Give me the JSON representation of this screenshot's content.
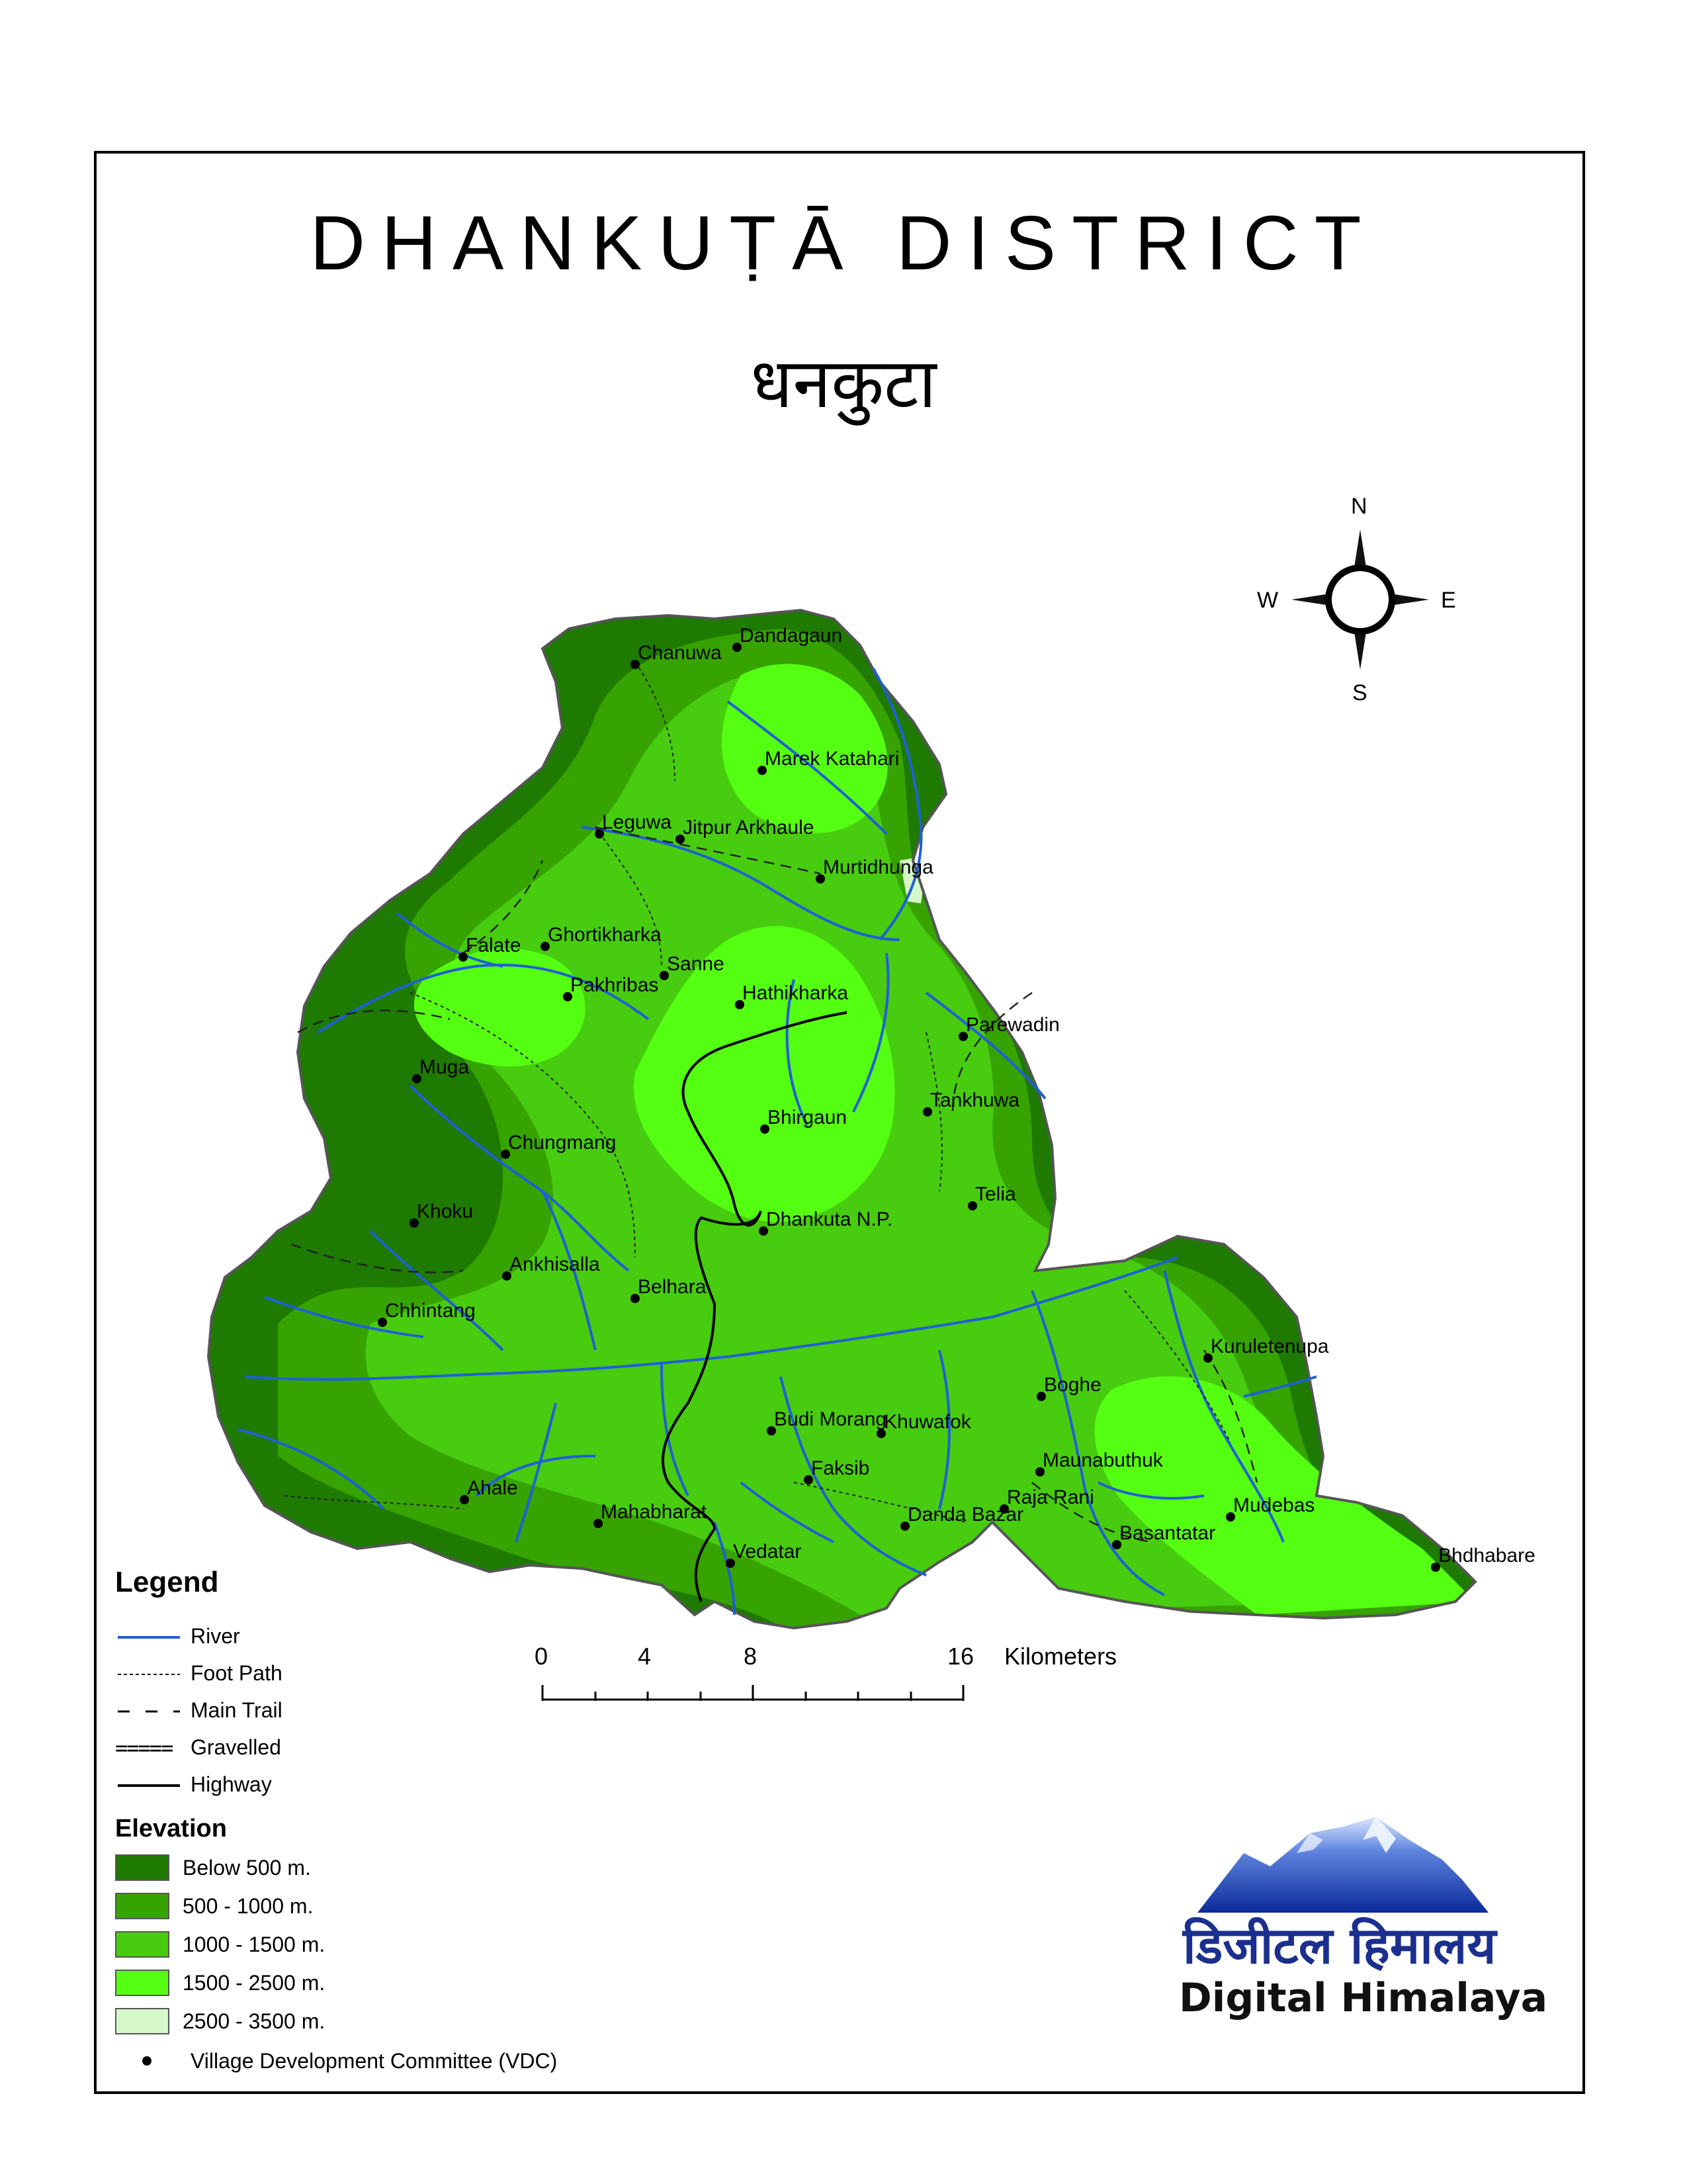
{
  "title": "DHANKUṬĀ DISTRICT",
  "subtitle": "धनकुटा",
  "compass": {
    "n": "N",
    "s": "S",
    "e": "E",
    "w": "W"
  },
  "scale": {
    "ticks": [
      "0",
      "4",
      "8",
      "16"
    ],
    "unit": "Kilometers"
  },
  "legend": {
    "title": "Legend",
    "lines": [
      {
        "label": "River",
        "sample": ""
      },
      {
        "label": "Foot Path",
        "sample": ""
      },
      {
        "label": "Main Trail",
        "sample": ""
      },
      {
        "label": "Gravelled",
        "sample": "====="
      },
      {
        "label": "Highway",
        "sample": ""
      }
    ],
    "elevation_title": "Elevation",
    "elevation": [
      {
        "label": "Below 500 m.",
        "color": "#1e7a00"
      },
      {
        "label": "500 - 1000 m.",
        "color": "#36a300"
      },
      {
        "label": "1000 - 1500 m.",
        "color": "#47cc0f"
      },
      {
        "label": "1500 - 2500 m.",
        "color": "#55ff11"
      },
      {
        "label": "2500 - 3500 m.",
        "color": "#d6f7c8"
      }
    ],
    "vdc_label": "Village Development Committee (VDC)"
  },
  "colors": {
    "river": "#1f5fd6",
    "highway": "#000000",
    "outline": "#555555"
  },
  "vdcs": [
    "Dandagaun",
    "Chanuwa",
    "Marek Katahari",
    "Leguwa",
    "Jitpur Arkhaule",
    "Murtidhunga",
    "Ghortikharka",
    "Falate",
    "Sanne",
    "Pakhribas",
    "Hathikharka",
    "Parewadin",
    "Muga",
    "Tankhuwa",
    "Bhirgaun",
    "Chungmang",
    "Telia",
    "Khoku",
    "Dhankuta N.P.",
    "Ankhisalla",
    "Belhara",
    "Chhintang",
    "Kuruletenupa",
    "Boghe",
    "Budi Morang",
    "Khuwafok",
    "Maunabuthuk",
    "Faksib",
    "Ahale",
    "Raja Rani",
    "Mudebas",
    "Danda Bazar",
    "Mahabharat",
    "Basantatar",
    "Vedatar",
    "Bhdhabare"
  ],
  "logo": {
    "devanagari": "डिजीटल हिमालय",
    "english": "Digital Himalaya"
  }
}
